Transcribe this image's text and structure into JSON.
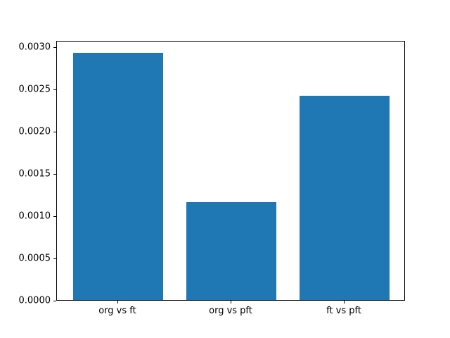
{
  "chart_data": {
    "type": "bar",
    "categories": [
      "org vs ft",
      "org vs pft",
      "ft vs pft"
    ],
    "values": [
      0.00293,
      0.00116,
      0.00242
    ],
    "title": "",
    "xlabel": "",
    "ylabel": "",
    "ylim": [
      0,
      0.003077
    ],
    "yticks": [
      0.0,
      0.0005,
      0.001,
      0.0015,
      0.002,
      0.0025,
      0.003
    ],
    "ytick_labels": [
      "0.0000",
      "0.0005",
      "0.0010",
      "0.0015",
      "0.0020",
      "0.0025",
      "0.0030"
    ],
    "bar_color": "#1f77b4",
    "axis_color": "#000000",
    "background": "#ffffff",
    "grid": false,
    "legend_position": "none"
  }
}
